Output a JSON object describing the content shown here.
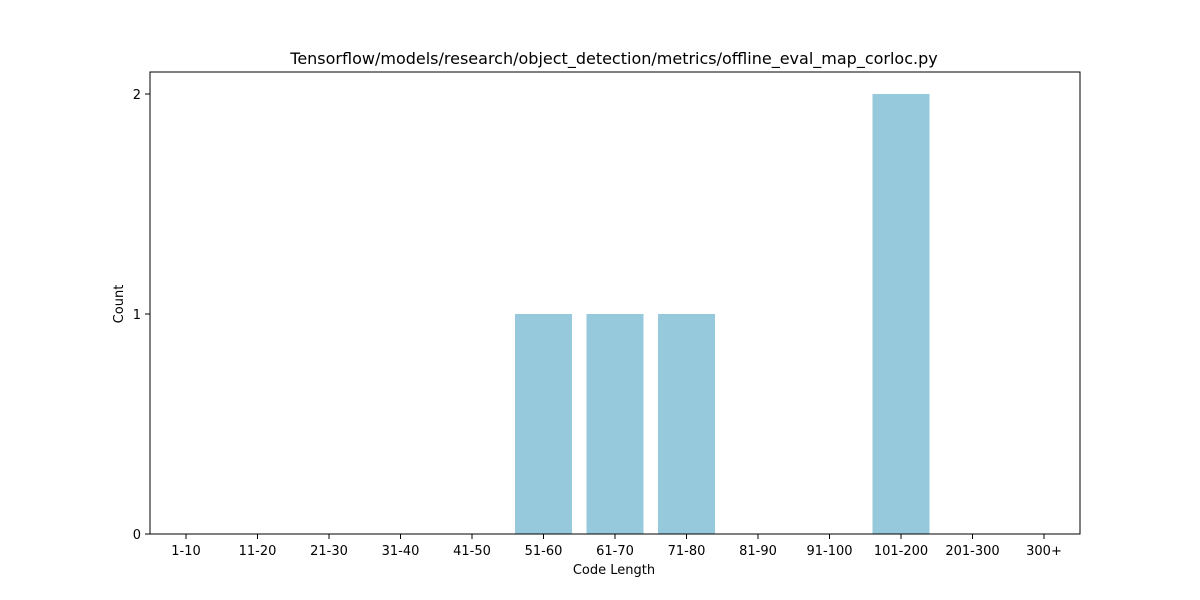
{
  "chart_data": {
    "type": "bar",
    "title": "Tensorflow/models/research/object_detection/metrics/offline_eval_map_corloc.py",
    "xlabel": "Code Length",
    "ylabel": "Count",
    "categories": [
      "1-10",
      "11-20",
      "21-30",
      "31-40",
      "41-50",
      "51-60",
      "61-70",
      "71-80",
      "81-90",
      "91-100",
      "101-200",
      "201-300",
      "300+"
    ],
    "values": [
      0,
      0,
      0,
      0,
      0,
      1,
      1,
      1,
      0,
      0,
      2,
      0,
      0
    ],
    "yticks": [
      "0",
      "1",
      "2"
    ],
    "ylim": [
      0,
      2.1
    ],
    "grid": false,
    "legend": "none",
    "bar_color": "#96c9dc"
  }
}
